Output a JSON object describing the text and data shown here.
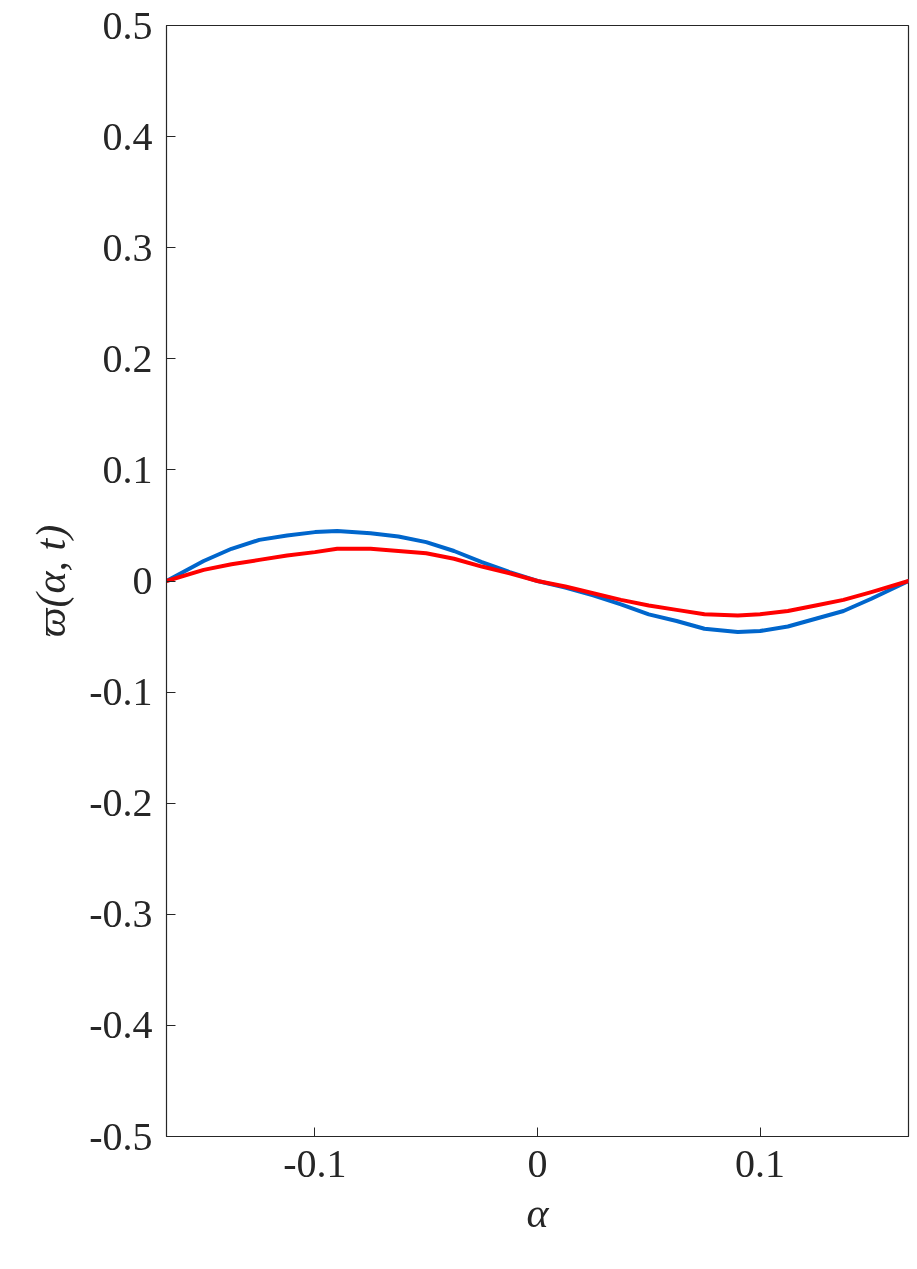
{
  "chart_data": {
    "type": "line",
    "xlabel": "α",
    "ylabel": "ϖ(α, t)",
    "xlim": [
      -0.1667,
      0.1667
    ],
    "ylim": [
      -0.5,
      0.5
    ],
    "xticks": [
      -0.1,
      0,
      0.1
    ],
    "yticks": [
      -0.5,
      -0.4,
      -0.3,
      -0.2,
      -0.1,
      0,
      0.1,
      0.2,
      0.3,
      0.4,
      0.5
    ],
    "grid": false,
    "line_style": "solid",
    "marker": "none",
    "x": [
      -0.1667,
      -0.15,
      -0.1375,
      -0.125,
      -0.1125,
      -0.1,
      -0.09,
      -0.075,
      -0.0625,
      -0.05,
      -0.0375,
      -0.025,
      -0.0125,
      0,
      0.0125,
      0.025,
      0.0375,
      0.05,
      0.0625,
      0.075,
      0.09,
      0.1,
      0.1125,
      0.125,
      0.1375,
      0.15,
      0.1667
    ],
    "series": [
      {
        "color": "#0066cc",
        "values": [
          0,
          0.018,
          0.029,
          0.037,
          0.041,
          0.044,
          0.045,
          0.043,
          0.04,
          0.035,
          0.027,
          0.017,
          0.008,
          0,
          -0.006,
          -0.013,
          -0.021,
          -0.03,
          -0.036,
          -0.043,
          -0.046,
          -0.045,
          -0.041,
          -0.034,
          -0.027,
          -0.016,
          0
        ]
      },
      {
        "color": "#ff0000",
        "values": [
          0,
          0.01,
          0.015,
          0.019,
          0.023,
          0.026,
          0.029,
          0.029,
          0.027,
          0.025,
          0.02,
          0.013,
          0.007,
          0,
          -0.005,
          -0.011,
          -0.017,
          -0.022,
          -0.026,
          -0.03,
          -0.031,
          -0.03,
          -0.027,
          -0.022,
          -0.017,
          -0.01,
          0
        ]
      }
    ]
  }
}
